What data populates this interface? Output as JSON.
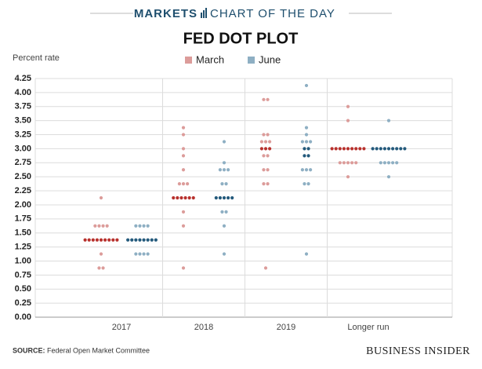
{
  "header": {
    "brand": "MARKETS",
    "section": "CHART OF THE DAY"
  },
  "chart_data": {
    "type": "dot",
    "title": "FED DOT PLOT",
    "y_label": "Percent rate",
    "categories": [
      "2017",
      "2018",
      "2019",
      "Longer run"
    ],
    "ylim": [
      0,
      4.25
    ],
    "yticks": [
      {
        "value": 0,
        "label": "0.00"
      },
      0.25,
      {
        "value": 0.5,
        "label": "0.50"
      },
      0.75,
      {
        "value": 1,
        "label": "1.00"
      },
      1.25,
      {
        "value": 1.5,
        "label": "1.50"
      },
      1.75,
      {
        "value": 2,
        "label": "2.00"
      },
      2.25,
      {
        "value": 2.5,
        "label": "2.50"
      },
      2.75,
      {
        "value": 3,
        "label": "3.00"
      },
      3.25,
      {
        "value": 3.5,
        "label": "3.50"
      },
      3.75,
      {
        "value": 4,
        "label": "4.00"
      },
      4.25
    ],
    "grid": true,
    "legend": "top",
    "series": [
      {
        "name": "March",
        "color": "#dc9c9a",
        "median_color": "#b8312d",
        "medians": [
          [
            1.375
          ],
          [
            2.125
          ],
          [
            3.0
          ],
          [
            3.0
          ]
        ],
        "values": [
          [
            2.125,
            1.625,
            1.625,
            1.625,
            1.625,
            1.375,
            1.375,
            1.375,
            1.375,
            1.375,
            1.375,
            1.375,
            1.375,
            1.375,
            1.125,
            0.875,
            0.875
          ],
          [
            3.375,
            3.25,
            3.0,
            2.875,
            2.625,
            2.375,
            2.375,
            2.375,
            2.125,
            2.125,
            2.125,
            2.125,
            2.125,
            2.125,
            1.875,
            1.625,
            0.875
          ],
          [
            3.875,
            3.875,
            3.25,
            3.25,
            3.125,
            3.125,
            3.125,
            3.0,
            3.0,
            3.0,
            2.875,
            2.875,
            2.625,
            2.625,
            2.375,
            2.375,
            0.875
          ],
          [
            3.75,
            3.5,
            3.0,
            3.0,
            3.0,
            3.0,
            3.0,
            3.0,
            3.0,
            3.0,
            3.0,
            2.75,
            2.75,
            2.75,
            2.75,
            2.75,
            2.5
          ]
        ]
      },
      {
        "name": "June",
        "color": "#8eafc3",
        "median_color": "#245a7c",
        "medians": [
          [
            1.375
          ],
          [
            2.125
          ],
          [
            3.0,
            2.875
          ],
          [
            3.0
          ]
        ],
        "values": [
          [
            1.625,
            1.625,
            1.625,
            1.625,
            1.375,
            1.375,
            1.375,
            1.375,
            1.375,
            1.375,
            1.375,
            1.375,
            1.125,
            1.125,
            1.125,
            1.125
          ],
          [
            3.125,
            2.75,
            2.625,
            2.625,
            2.625,
            2.375,
            2.375,
            2.125,
            2.125,
            2.125,
            2.125,
            2.125,
            1.875,
            1.875,
            1.625,
            1.125
          ],
          [
            4.125,
            3.375,
            3.25,
            3.125,
            3.125,
            3.125,
            3.0,
            3.0,
            2.875,
            2.875,
            2.625,
            2.625,
            2.625,
            2.375,
            2.375,
            1.125
          ],
          [
            3.5,
            3.0,
            3.0,
            3.0,
            3.0,
            3.0,
            3.0,
            3.0,
            3.0,
            3.0,
            2.75,
            2.75,
            2.75,
            2.75,
            2.75,
            2.5
          ]
        ]
      }
    ]
  },
  "footer": {
    "source_label": "SOURCE:",
    "source": "Federal Open Market Committee",
    "logo": "BUSINESS INSIDER"
  }
}
